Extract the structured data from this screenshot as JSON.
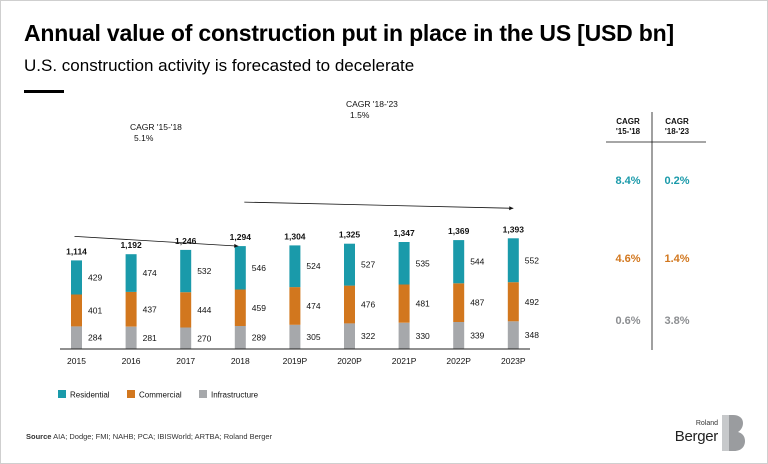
{
  "title": "Annual value of construction put in place in the US [USD bn]",
  "subtitle": "U.S. construction activity is forecasted to decelerate",
  "source_label": "Source",
  "source_text": "AIA; Dodge; FMI; NAHB; PCA; IBISWorld; ARTBA; Roland Berger",
  "logo": {
    "line1": "Roland",
    "line2": "Berger"
  },
  "colors": {
    "residential": "#1a9aaa",
    "commercial": "#d2771e",
    "infrastructure": "#a6a8ab",
    "text": "#000000",
    "axis": "#222222"
  },
  "chart_data": {
    "type": "bar",
    "stacked": true,
    "categories": [
      "2015",
      "2016",
      "2017",
      "2018",
      "2019P",
      "2020P",
      "2021P",
      "2022P",
      "2023P"
    ],
    "series": [
      {
        "name": "Infrastructure",
        "key": "infrastructure",
        "values": [
          284,
          281,
          270,
          289,
          305,
          322,
          330,
          339,
          348
        ]
      },
      {
        "name": "Commercial",
        "key": "commercial",
        "values": [
          401,
          437,
          444,
          459,
          474,
          476,
          481,
          487,
          492
        ]
      },
      {
        "name": "Residential",
        "key": "residential",
        "values": [
          429,
          474,
          532,
          546,
          524,
          527,
          535,
          544,
          552
        ]
      }
    ],
    "totals": [
      "1,114",
      "1,192",
      "1,246",
      "1,294",
      "1,304",
      "1,325",
      "1,347",
      "1,369",
      "1,393"
    ],
    "ylim": [
      0,
      1400
    ],
    "legend_order": [
      "Residential",
      "Commercial",
      "Infrastructure"
    ],
    "annotations": [
      {
        "label": "CAGR '15-'18",
        "value": "5.1%",
        "from": "2015",
        "to": "2018"
      },
      {
        "label": "CAGR '18-'23",
        "value": "1.5%",
        "from": "2018",
        "to": "2023P"
      }
    ],
    "cagr_table": {
      "headers": [
        "CAGR\n'15-'18",
        "CAGR\n'18-'23"
      ],
      "rows": [
        {
          "series": "Residential",
          "cagr_15_18": "8.4%",
          "cagr_18_23": "0.2%"
        },
        {
          "series": "Commercial",
          "cagr_15_18": "4.6%",
          "cagr_18_23": "1.4%"
        },
        {
          "series": "Infrastructure",
          "cagr_15_18": "0.6%",
          "cagr_18_23": "3.8%"
        }
      ]
    }
  }
}
